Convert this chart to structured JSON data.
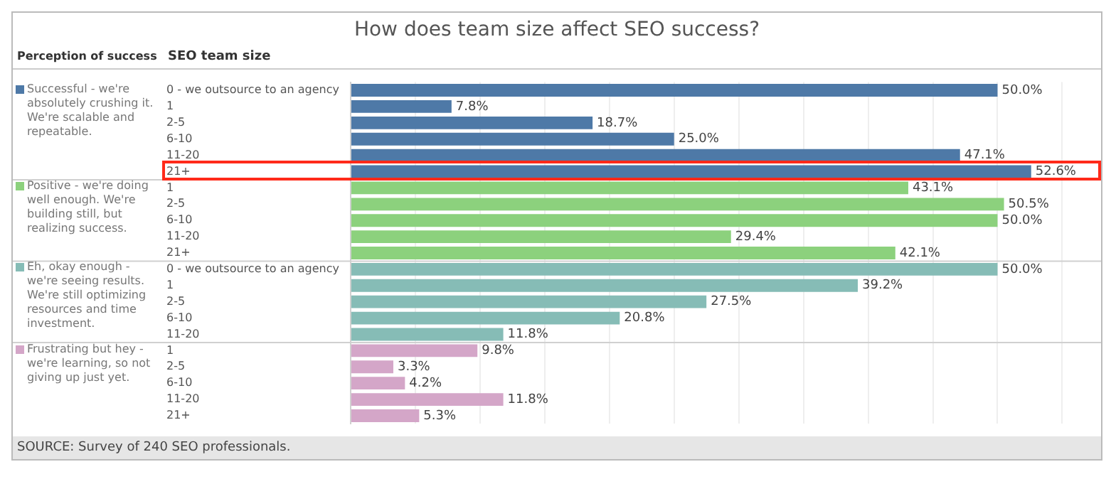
{
  "chart_data": {
    "type": "bar",
    "orientation": "horizontal",
    "title": "How does team size affect SEO success?",
    "ylabel": "SEO team size",
    "legend_title": "Perception of success",
    "categories": [
      "0 - we outsource to an agency",
      "1",
      "2-5",
      "6-10",
      "11-20",
      "21+",
      "1",
      "2-5",
      "6-10",
      "11-20",
      "21+",
      "0 - we outsource to an agency",
      "1",
      "2-5",
      "6-10",
      "11-20",
      "1",
      "2-5",
      "6-10",
      "11-20",
      "21+"
    ],
    "series": [
      {
        "name": "Successful - we're absolutely crushing it. We're scalable and repeatable.",
        "color": "#4e79a7",
        "values": [
          50,
          7.8,
          18.7,
          25,
          47.1,
          52.6,
          null,
          null,
          null,
          null,
          null,
          null,
          null,
          null,
          null,
          null,
          null,
          null,
          null,
          null,
          null
        ],
        "value_labels": [
          "50.0%",
          "7.8%",
          "18.7%",
          "25.0%",
          "47.1%",
          "52.6%",
          null,
          null,
          null,
          null,
          null,
          null,
          null,
          null,
          null,
          null,
          null,
          null,
          null,
          null,
          null
        ]
      },
      {
        "name": "Positive - we're doing well enough. We're building still, but realizing success.",
        "color": "#8cd17d",
        "values": [
          null,
          null,
          null,
          null,
          null,
          null,
          43.1,
          50.5,
          50,
          29.4,
          42.1,
          null,
          null,
          null,
          null,
          null,
          null,
          null,
          null,
          null,
          null
        ],
        "value_labels": [
          null,
          null,
          null,
          null,
          null,
          null,
          "43.1%",
          "50.5%",
          "50.0%",
          "29.4%",
          "42.1%",
          null,
          null,
          null,
          null,
          null,
          null,
          null,
          null,
          null,
          null
        ]
      },
      {
        "name": "Eh, okay enough - we're seeing results. We're still optimizing resources and time investment.",
        "color": "#86bcb6",
        "values": [
          null,
          null,
          null,
          null,
          null,
          null,
          null,
          null,
          null,
          null,
          null,
          50,
          39.2,
          27.5,
          20.8,
          11.8,
          null,
          null,
          null,
          null,
          null
        ],
        "value_labels": [
          null,
          null,
          null,
          null,
          null,
          null,
          null,
          null,
          null,
          null,
          null,
          "50.0%",
          "39.2%",
          "27.5%",
          "20.8%",
          "11.8%",
          null,
          null,
          null,
          null,
          null
        ]
      },
      {
        "name": "Frustrating but hey - we're learning, so not giving up just yet.",
        "color": "#d4a6c8",
        "values": [
          null,
          null,
          null,
          null,
          null,
          null,
          null,
          null,
          null,
          null,
          null,
          null,
          null,
          null,
          null,
          null,
          9.8,
          3.3,
          4.2,
          11.8,
          5.3
        ],
        "value_labels": [
          null,
          null,
          null,
          null,
          null,
          null,
          null,
          null,
          null,
          null,
          null,
          null,
          null,
          null,
          null,
          null,
          "9.8%",
          "3.3%",
          "4.2%",
          "11.8%",
          "5.3%"
        ]
      }
    ],
    "xlim": [
      0,
      58
    ],
    "xticks": [
      {
        "value": 0,
        "label": null
      },
      {
        "value": 5,
        "label": null
      },
      {
        "value": 10,
        "label": null
      },
      {
        "value": 15,
        "label": null
      },
      {
        "value": 20,
        "label": null
      },
      {
        "value": 25,
        "label": null
      },
      {
        "value": 30,
        "label": null
      },
      {
        "value": 35,
        "label": null
      },
      {
        "value": 40,
        "label": null
      },
      {
        "value": 45,
        "label": null
      },
      {
        "value": 50,
        "label": null
      },
      {
        "value": 55,
        "label": null
      }
    ],
    "grid": "x",
    "tick_labels": "y",
    "legend": "left",
    "annotations": [
      "SOURCE: Survey of 240 SEO professionals."
    ]
  }
}
